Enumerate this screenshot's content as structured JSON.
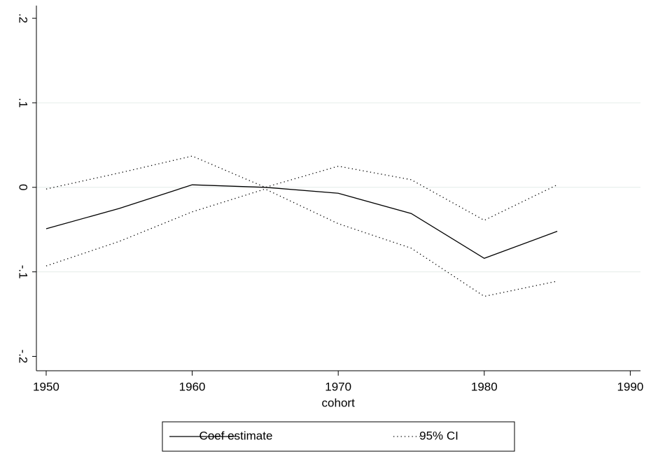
{
  "chart_data": {
    "type": "line",
    "x_label": "cohort",
    "x": [
      1950,
      1955,
      1960,
      1965,
      1970,
      1975,
      1980,
      1985
    ],
    "series": [
      {
        "name": "Coef estimate",
        "color": "#000000",
        "style": "solid",
        "values": [
          -0.049,
          -0.025,
          0.003,
          0.0,
          -0.007,
          -0.031,
          -0.084,
          -0.052
        ]
      },
      {
        "name": "95% CI",
        "color": "#000000",
        "style": "dotted",
        "upper": [
          -0.002,
          0.017,
          0.037,
          0.0,
          0.025,
          0.009,
          -0.039,
          0.003
        ],
        "lower": [
          -0.093,
          -0.064,
          -0.029,
          -0.002,
          -0.043,
          -0.072,
          -0.129,
          -0.111
        ]
      }
    ],
    "xlim": [
      1949.33,
      1990.7
    ],
    "xticks": [
      1950,
      1960,
      1970,
      1980,
      1990
    ],
    "ylim": [
      -0.217,
      0.215
    ],
    "yticks": [
      {
        "value": -0.2,
        "label": "-.2"
      },
      {
        "value": -0.1,
        "label": "-.1"
      },
      0,
      {
        "value": 0.1,
        "label": ".1"
      },
      {
        "value": 0.2,
        "label": ".2"
      }
    ],
    "grid": true,
    "legend": "bottom"
  }
}
